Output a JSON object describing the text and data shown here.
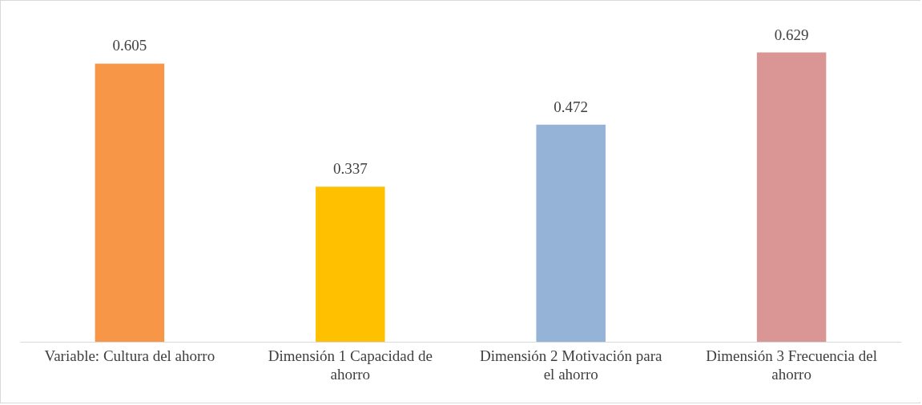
{
  "chart_data": {
    "type": "bar",
    "categories": [
      "Variable: Cultura del ahorro",
      "Dimensión 1 Capacidad de ahorro",
      "Dimensión 2 Motivación para el ahorro",
      "Dimensión 3 Frecuencia del ahorro"
    ],
    "values": [
      0.605,
      0.337,
      0.472,
      0.629
    ],
    "colors": [
      "#f79646",
      "#ffc000",
      "#95b3d7",
      "#d99694"
    ],
    "data_labels": true
  }
}
